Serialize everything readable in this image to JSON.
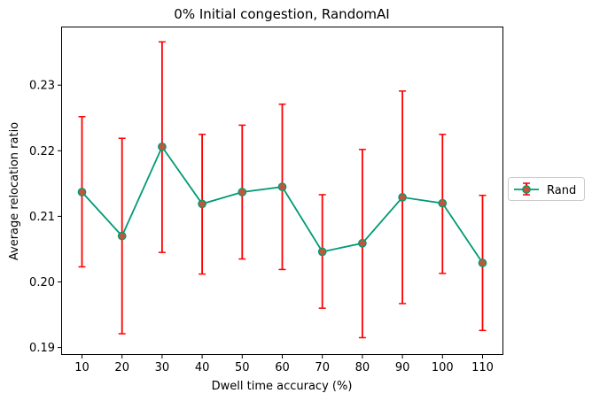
{
  "chart_data": {
    "type": "line",
    "title": "0% Initial congestion, RandomAI",
    "xlabel": "Dwell time accuracy (%)",
    "ylabel": "Average relocation ratio",
    "x": [
      10,
      20,
      30,
      40,
      50,
      60,
      70,
      80,
      90,
      100,
      110
    ],
    "xticks": [
      "10",
      "20",
      "30",
      "40",
      "50",
      "60",
      "70",
      "80",
      "90",
      "100",
      "110"
    ],
    "yticks": [
      "0.19",
      "0.20",
      "0.21",
      "0.22",
      "0.23"
    ],
    "ylim": [
      0.189,
      0.2388
    ],
    "grid": false,
    "legend_position": "right-outside",
    "series": [
      {
        "name": "Rand",
        "color": "#009a73",
        "marker_face": "#c0573a",
        "errorbar_color": "#ff0000",
        "values": [
          0.2137,
          0.207,
          0.2206,
          0.2119,
          0.2137,
          0.2145,
          0.2046,
          0.2059,
          0.2129,
          0.212,
          0.2029
        ],
        "err_low": [
          0.2023,
          0.1921,
          0.2045,
          0.2012,
          0.2035,
          0.2019,
          0.196,
          0.1915,
          0.1967,
          0.2013,
          0.1926
        ],
        "err_high": [
          0.2252,
          0.2219,
          0.2366,
          0.2225,
          0.2239,
          0.2271,
          0.2133,
          0.2202,
          0.2291,
          0.2225,
          0.2132
        ]
      }
    ]
  }
}
